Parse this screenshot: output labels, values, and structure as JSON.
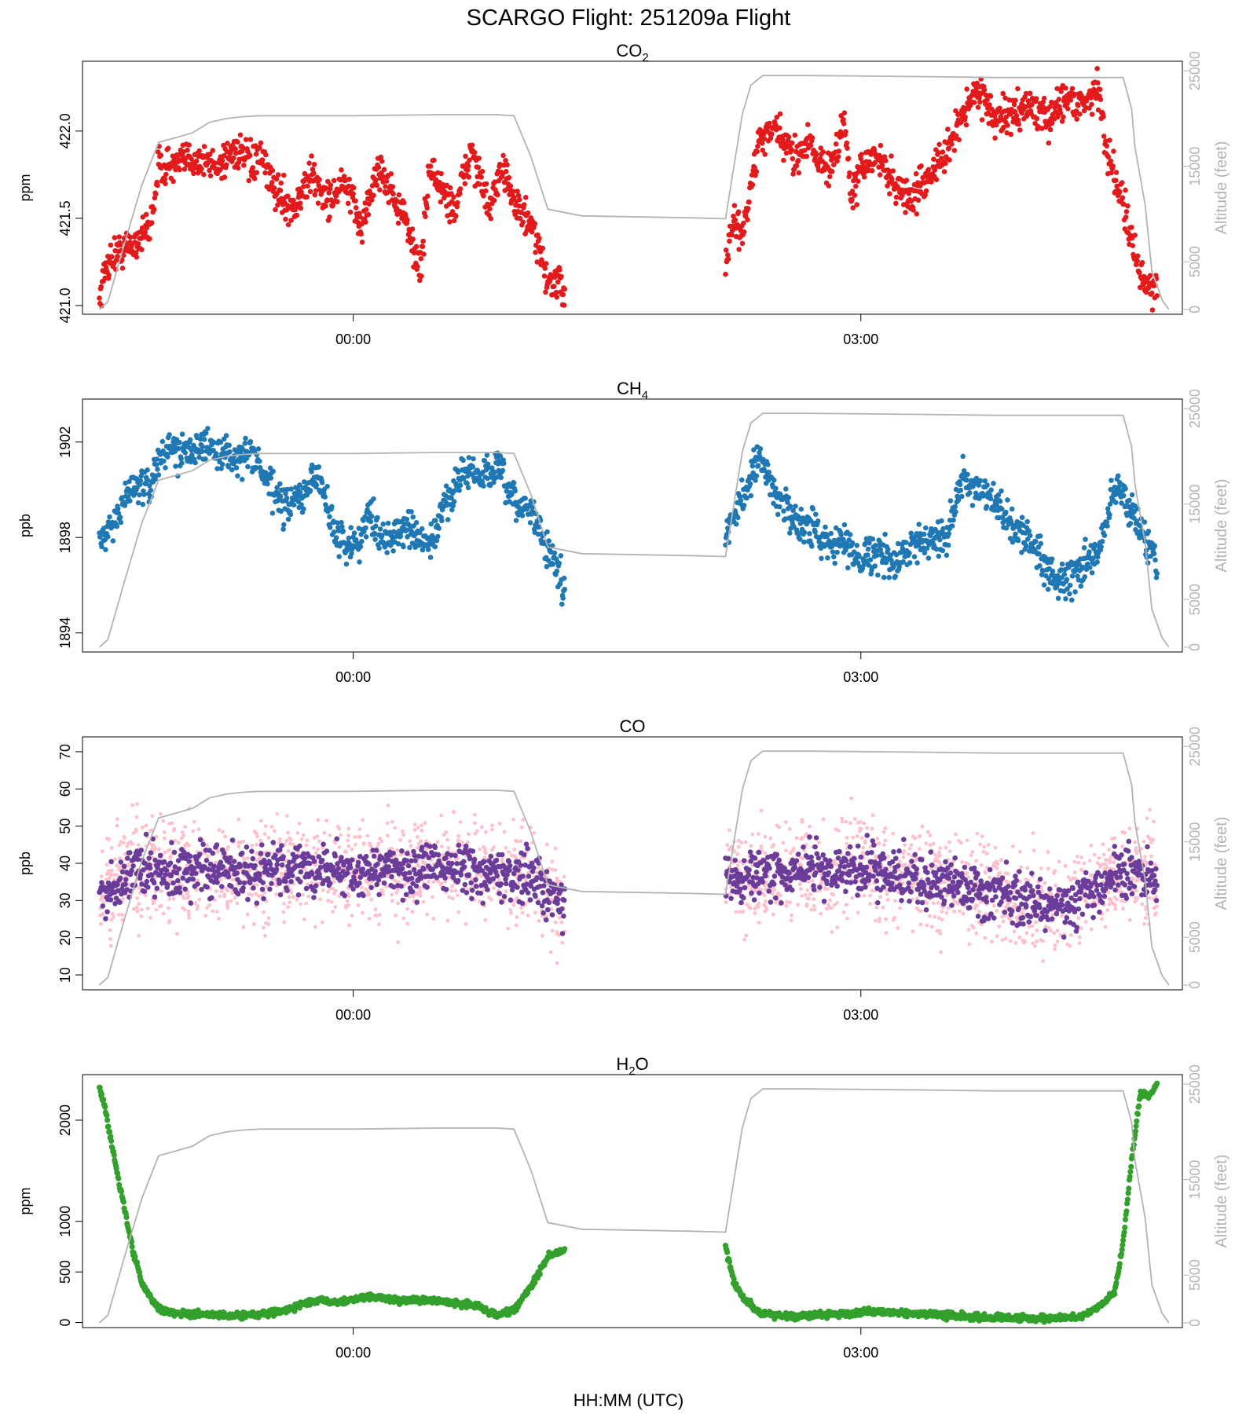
{
  "figure": {
    "title": "SCARGO Flight: 251209a  Flight",
    "xlabel": "HH:MM (UTC)"
  },
  "chart_data": [
    {
      "type": "scatter",
      "title": "CO2",
      "title_main": "CO",
      "title_sub": "2",
      "ylabel": "ppm",
      "ylim": [
        420.95,
        422.4
      ],
      "yticks": [
        "421.0",
        "421.5",
        "422.0"
      ],
      "ytick_values": [
        421.0,
        421.5,
        422.0
      ],
      "color": "#e31a1c",
      "series": [
        {
          "name": "CO2",
          "t": [
            -1.5,
            -1.45,
            -1.4,
            -1.3,
            -1.2,
            -1.15,
            -1.05,
            -0.95,
            -0.8,
            -0.7,
            -0.6,
            -0.55,
            -0.45,
            -0.35,
            -0.25,
            -0.15,
            -0.05,
            0.05,
            0.15,
            0.3,
            0.4,
            0.45,
            0.5,
            0.6,
            0.7,
            0.8,
            0.9,
            0.95,
            1.05,
            1.15,
            1.25
          ],
          "v": [
            421.05,
            421.25,
            421.3,
            421.35,
            421.45,
            421.8,
            421.8,
            421.85,
            421.8,
            421.9,
            421.8,
            421.85,
            421.65,
            421.55,
            421.75,
            421.6,
            421.7,
            421.45,
            421.8,
            421.5,
            421.2,
            421.8,
            421.7,
            421.55,
            421.9,
            421.55,
            421.8,
            421.6,
            421.45,
            421.15,
            421.1
          ]
        },
        {
          "name": "CO2-leg2",
          "t": [
            2.2,
            2.25,
            2.3,
            2.4,
            2.5,
            2.6,
            2.7,
            2.8,
            2.9,
            2.95,
            3.0,
            3.1,
            3.2,
            3.3,
            3.4,
            3.5,
            3.6,
            3.7,
            3.8,
            3.9,
            4.0,
            4.1,
            4.2,
            4.3,
            4.4,
            4.45,
            4.55,
            4.65,
            4.75
          ],
          "v": [
            421.2,
            421.5,
            421.4,
            421.95,
            422.0,
            421.85,
            421.95,
            421.75,
            422.05,
            421.6,
            421.8,
            421.85,
            421.7,
            421.6,
            421.75,
            421.85,
            422.1,
            422.25,
            422.05,
            422.1,
            422.15,
            422.05,
            422.2,
            422.15,
            422.25,
            421.9,
            421.6,
            421.15,
            421.1
          ]
        }
      ]
    },
    {
      "type": "scatter",
      "title": "CH4",
      "title_main": "CH",
      "title_sub": "4",
      "ylabel": "ppb",
      "ylim": [
        1893.2,
        1903.8
      ],
      "yticks": [
        "1894",
        "1898",
        "1902"
      ],
      "ytick_values": [
        1894,
        1898,
        1902
      ],
      "color": "#1f78b4",
      "series": [
        {
          "name": "CH4",
          "t": [
            -1.5,
            -1.4,
            -1.3,
            -1.2,
            -1.15,
            -1.05,
            -0.95,
            -0.85,
            -0.75,
            -0.65,
            -0.6,
            -0.5,
            -0.4,
            -0.3,
            -0.2,
            -0.1,
            0.0,
            0.1,
            0.2,
            0.3,
            0.45,
            0.55,
            0.65,
            0.75,
            0.85,
            0.95,
            1.05,
            1.15,
            1.25
          ],
          "v": [
            1898.0,
            1898.7,
            1900.3,
            1900.0,
            1901.5,
            1901.6,
            1901.9,
            1901.7,
            1901.5,
            1901.3,
            1901.6,
            1900.2,
            1899.2,
            1899.8,
            1900.6,
            1898.0,
            1897.6,
            1898.9,
            1897.9,
            1898.4,
            1897.6,
            1899.5,
            1900.8,
            1900.5,
            1900.9,
            1899.4,
            1899.2,
            1897.5,
            1895.8
          ]
        },
        {
          "name": "CH4-leg2",
          "t": [
            2.2,
            2.3,
            2.4,
            2.5,
            2.6,
            2.7,
            2.8,
            2.9,
            3.0,
            3.1,
            3.2,
            3.3,
            3.4,
            3.5,
            3.6,
            3.7,
            3.8,
            3.9,
            4.0,
            4.1,
            4.2,
            4.3,
            4.4,
            4.5,
            4.6,
            4.7,
            4.75
          ],
          "v": [
            1898.0,
            1899.8,
            1901.3,
            1899.8,
            1898.8,
            1898.4,
            1897.9,
            1897.7,
            1897.2,
            1897.4,
            1896.8,
            1897.7,
            1898.0,
            1898.0,
            1900.5,
            1899.8,
            1899.4,
            1898.4,
            1897.9,
            1896.8,
            1895.9,
            1896.8,
            1897.2,
            1900.2,
            1899.2,
            1897.6,
            1897.2
          ]
        }
      ]
    },
    {
      "type": "scatter",
      "title": "CO",
      "title_main": "CO",
      "title_sub": "",
      "ylabel": "ppb",
      "ylim": [
        6,
        74
      ],
      "yticks": [
        "10",
        "20",
        "30",
        "40",
        "50",
        "60",
        "70"
      ],
      "ytick_values": [
        10,
        20,
        30,
        40,
        50,
        60,
        70
      ],
      "color": "#6a3d9a",
      "raw_color": "#ffc0cb",
      "series": [
        {
          "name": "CO (averaged)",
          "t": [
            -1.5,
            -1.4,
            -1.3,
            -1.2,
            -1.1,
            -1.0,
            -0.9,
            -0.8,
            -0.65,
            -0.5,
            -0.4,
            -0.3,
            -0.2,
            -0.1,
            0.0,
            0.1,
            0.2,
            0.3,
            0.45,
            0.55,
            0.65,
            0.75,
            0.85,
            0.95,
            1.05,
            1.15,
            1.25
          ],
          "v": [
            32,
            34,
            38,
            39,
            37,
            38,
            38,
            37,
            37,
            38,
            38,
            39,
            38,
            39,
            38,
            38,
            38,
            37,
            39,
            40,
            38,
            38,
            37,
            37,
            36,
            33,
            28
          ]
        },
        {
          "name": "CO (averaged)-leg2",
          "t": [
            2.2,
            2.3,
            2.4,
            2.5,
            2.6,
            2.7,
            2.8,
            2.9,
            3.0,
            3.1,
            3.2,
            3.3,
            3.4,
            3.5,
            3.6,
            3.7,
            3.8,
            3.9,
            4.0,
            4.1,
            4.2,
            4.3,
            4.4,
            4.5,
            4.6,
            4.7,
            4.75
          ],
          "v": [
            37,
            36,
            38,
            37,
            38,
            39,
            38,
            39,
            39,
            38,
            37,
            36,
            35,
            35,
            34,
            33,
            33,
            31,
            30,
            28,
            29,
            31,
            33,
            37,
            38,
            36,
            34
          ]
        }
      ]
    },
    {
      "type": "scatter",
      "title": "H2O",
      "title_main": "H",
      "title_sub": "2",
      "title_tail": "O",
      "ylabel": "ppm",
      "ylim": [
        -50,
        2450
      ],
      "yticks": [
        "0",
        "500",
        "1000",
        "2000"
      ],
      "ytick_values": [
        0,
        500,
        1000,
        2000
      ],
      "color": "#33a02c",
      "series": [
        {
          "name": "H2O",
          "t": [
            -1.5,
            -1.47,
            -1.42,
            -1.35,
            -1.3,
            -1.25,
            -1.2,
            -1.15,
            -1.05,
            -0.9,
            -0.75,
            -0.6,
            -0.5,
            -0.4,
            -0.3,
            -0.2,
            -0.1,
            0.0,
            0.1,
            0.2,
            0.3,
            0.45,
            0.55,
            0.65,
            0.75,
            0.85,
            0.95,
            1.05,
            1.15,
            1.25
          ],
          "v": [
            2330,
            2150,
            1700,
            1100,
            700,
            400,
            250,
            130,
            90,
            80,
            70,
            70,
            90,
            120,
            180,
            220,
            200,
            230,
            260,
            230,
            220,
            220,
            210,
            180,
            160,
            70,
            120,
            350,
            650,
            720
          ]
        },
        {
          "name": "H2O-leg2",
          "t": [
            2.2,
            2.25,
            2.3,
            2.4,
            2.5,
            2.6,
            2.7,
            2.8,
            2.9,
            3.0,
            3.1,
            3.2,
            3.3,
            3.4,
            3.5,
            3.6,
            3.7,
            3.8,
            3.9,
            4.0,
            4.1,
            4.2,
            4.3,
            4.4,
            4.5,
            4.55,
            4.6,
            4.65,
            4.7,
            4.75
          ],
          "v": [
            750,
            400,
            250,
            100,
            70,
            60,
            70,
            80,
            90,
            100,
            110,
            100,
            90,
            80,
            70,
            60,
            50,
            45,
            40,
            40,
            40,
            45,
            60,
            150,
            300,
            800,
            1600,
            2250,
            2250,
            2350
          ]
        }
      ]
    }
  ],
  "altitude": {
    "label": "Altitude (feet)",
    "ylim": [
      -500,
      26000
    ],
    "yticks": [
      "0",
      "5000",
      "15000",
      "25000"
    ],
    "ytick_values": [
      0,
      5000,
      15000,
      25000
    ],
    "color": "#b3b3b3",
    "t": [
      -1.5,
      -1.45,
      -1.35,
      -1.25,
      -1.15,
      -1.05,
      -0.95,
      -0.85,
      -0.75,
      -0.65,
      -0.55,
      0.0,
      0.5,
      0.85,
      0.95,
      1.05,
      1.15,
      1.35,
      2.0,
      2.2,
      2.25,
      2.3,
      2.35,
      2.42,
      2.5,
      2.7,
      3.3,
      3.8,
      4.3,
      4.55,
      4.6,
      4.62,
      4.68,
      4.72,
      4.78,
      4.82
    ],
    "v": [
      0,
      800,
      7000,
      13000,
      17500,
      18000,
      18500,
      19600,
      20000,
      20200,
      20300,
      20300,
      20400,
      20400,
      20300,
      16000,
      10500,
      9800,
      9600,
      9500,
      15000,
      20500,
      23500,
      24500,
      24500,
      24500,
      24400,
      24300,
      24300,
      24300,
      21000,
      17000,
      11000,
      4000,
      1000,
      0
    ]
  },
  "xaxis": {
    "ticks": [
      "00:00",
      "03:00"
    ],
    "tick_hours": [
      0,
      3
    ],
    "xlim": [
      -1.6,
      4.9
    ]
  }
}
